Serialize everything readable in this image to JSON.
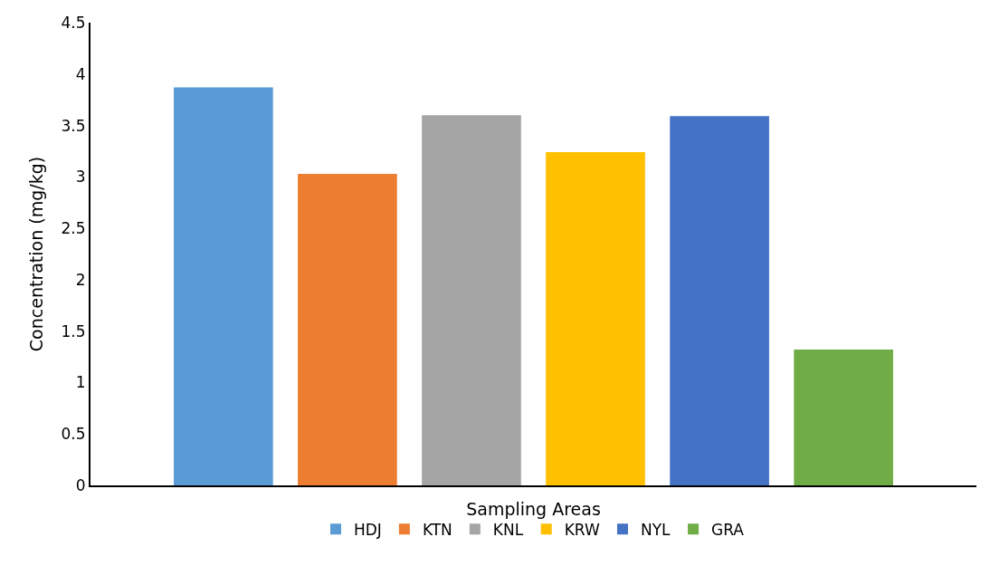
{
  "chart_data": {
    "type": "bar",
    "xlabel": "Sampling Areas",
    "ylabel": "Concentration (mg/kg)",
    "categories": [
      null
    ],
    "series": [
      {
        "name": "HDJ",
        "color": "#5b9bd5",
        "values": [
          3.87
        ]
      },
      {
        "name": "KTN",
        "color": "#ed7d31",
        "values": [
          3.03
        ]
      },
      {
        "name": "KNL",
        "color": "#a5a5a5",
        "values": [
          3.6
        ]
      },
      {
        "name": "KRW",
        "color": "#ffc000",
        "values": [
          3.24
        ]
      },
      {
        "name": "NYL",
        "color": "#4472c4",
        "values": [
          3.59
        ]
      },
      {
        "name": "GRA",
        "color": "#70ad47",
        "values": [
          1.32
        ]
      }
    ],
    "ylim": [
      0,
      4.5
    ],
    "yticks": [
      0,
      0.5,
      1,
      1.5,
      2,
      2.5,
      3,
      3.5,
      4,
      4.5
    ],
    "grid": false,
    "legend": "bottom"
  }
}
